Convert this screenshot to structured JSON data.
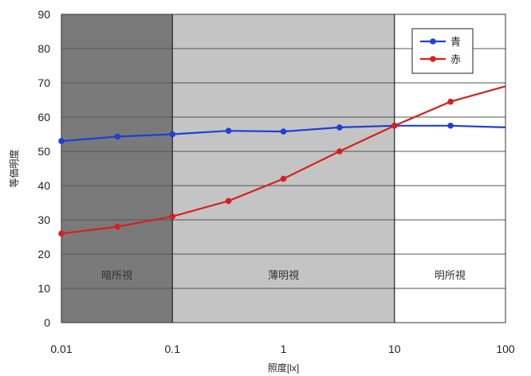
{
  "chart_data": {
    "type": "line",
    "x_scale": "log",
    "xlim": [
      0.01,
      100
    ],
    "ylim": [
      0,
      90
    ],
    "x_ticks": [
      "0.01",
      "0.1",
      "1",
      "10",
      "100"
    ],
    "y_ticks": [
      "0",
      "10",
      "20",
      "30",
      "40",
      "50",
      "60",
      "70",
      "80",
      "90"
    ],
    "xlabel": "照度[lx]",
    "ylabel": "等価明度",
    "grid": true,
    "legend_position": "top-right",
    "regions": [
      {
        "label": "暗所視",
        "x_range": [
          0.01,
          0.1
        ],
        "color": "#7a7a7a"
      },
      {
        "label": "薄明視",
        "x_range": [
          0.1,
          10
        ],
        "color": "#c4c4c4"
      },
      {
        "label": "明所視",
        "x_range": [
          10,
          100
        ],
        "color": "#ffffff"
      }
    ],
    "series": [
      {
        "name": "青",
        "color": "#1f3fd6",
        "x": [
          0.01,
          0.032,
          0.1,
          0.32,
          1,
          3.2,
          10,
          32,
          100
        ],
        "y": [
          53,
          54.3,
          55,
          56,
          55.8,
          57,
          57.5,
          57.5,
          57
        ]
      },
      {
        "name": "赤",
        "color": "#d62020",
        "x": [
          0.01,
          0.032,
          0.1,
          0.32,
          1,
          3.2,
          10,
          32,
          100
        ],
        "y": [
          26,
          28,
          31,
          35.5,
          42,
          50,
          57.5,
          64.5,
          69
        ]
      }
    ]
  }
}
